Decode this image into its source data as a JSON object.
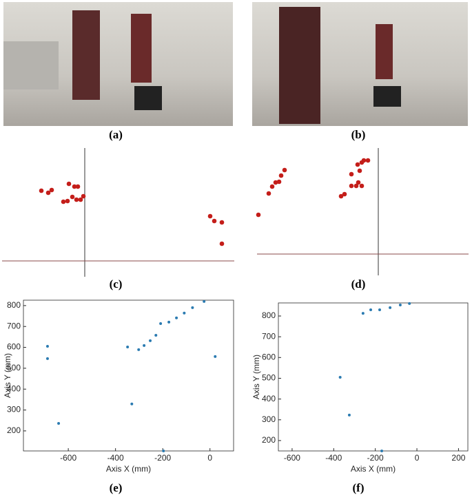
{
  "images": [
    {
      "caption": "(a)"
    },
    {
      "caption": "(b)"
    }
  ],
  "chart_data": [
    {
      "type": "scatter",
      "caption": "(c)",
      "color": "#c41e1a",
      "x": [
        -63,
        -53,
        -48,
        -23,
        -15,
        -10,
        -31,
        -25,
        -18,
        -12,
        -6,
        -2,
        182,
        188,
        199,
        199
      ],
      "y": [
        102,
        99,
        103,
        112,
        108,
        108,
        86,
        87,
        93,
        89,
        89,
        94,
        65,
        58,
        56,
        25
      ]
    },
    {
      "type": "scatter",
      "caption": "(d)",
      "color": "#c41e1a",
      "x": [
        -174,
        -159,
        -154,
        -149,
        -144,
        -141,
        -136,
        -54,
        -49,
        -39,
        -39,
        -32,
        -29,
        -27,
        -24,
        -30,
        -24,
        -21,
        -15
      ],
      "y": [
        57,
        88,
        98,
        104,
        105,
        114,
        122,
        84,
        87,
        99,
        116,
        99,
        104,
        121,
        99,
        130,
        133,
        136,
        136
      ]
    },
    {
      "type": "scatter",
      "caption": "(e)",
      "color": "#2b7bb1",
      "x_label": "Axis X (mm)",
      "y_label": "Axis Y (mm)",
      "x": [
        -688,
        -688,
        -641,
        -349,
        -331,
        -302,
        -279,
        -253,
        -229,
        -209,
        -174,
        -142,
        -109,
        -74,
        -25,
        22,
        -197
      ],
      "y": [
        605,
        546,
        236,
        602,
        329,
        589,
        609,
        632,
        658,
        714,
        721,
        741,
        764,
        790,
        820,
        556,
        104
      ],
      "xlim": [
        -790,
        100
      ],
      "ylim": [
        104,
        826
      ],
      "xticks": [
        -600,
        -400,
        -200,
        0
      ],
      "yticks": [
        200,
        300,
        400,
        500,
        600,
        700,
        800
      ]
    },
    {
      "type": "scatter",
      "caption": "(f)",
      "color": "#2b7bb1",
      "x_label": "Axis X (mm)",
      "y_label": "Axis Y (mm)",
      "x": [
        -369,
        -325,
        -259,
        -222,
        -179,
        -129,
        -80,
        -36,
        -169
      ],
      "y": [
        505,
        323,
        813,
        830,
        830,
        840,
        853,
        860,
        150
      ],
      "xlim": [
        -666,
        245
      ],
      "ylim": [
        150,
        863
      ],
      "xticks": [
        -600,
        -400,
        -200,
        0,
        200
      ],
      "yticks": [
        200,
        300,
        400,
        500,
        600,
        700,
        800
      ]
    }
  ]
}
